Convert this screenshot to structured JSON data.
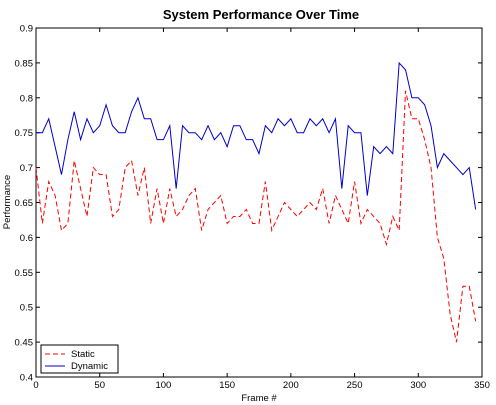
{
  "chart_data": {
    "type": "line",
    "title": "System Performance Over Time",
    "xlabel": "Frame #",
    "ylabel": "Performance",
    "xlim": [
      0,
      350
    ],
    "ylim": [
      0.4,
      0.9
    ],
    "xticks": [
      0,
      50,
      100,
      150,
      200,
      250,
      300,
      350
    ],
    "yticks": [
      0.4,
      0.45,
      0.5,
      0.55,
      0.6,
      0.65,
      0.7,
      0.75,
      0.8,
      0.85,
      0.9
    ],
    "grid": false,
    "legend_position": "bottom-left",
    "x": [
      0,
      5,
      10,
      15,
      20,
      25,
      30,
      35,
      40,
      45,
      50,
      55,
      60,
      65,
      70,
      75,
      80,
      85,
      90,
      95,
      100,
      105,
      110,
      115,
      120,
      125,
      130,
      135,
      140,
      145,
      150,
      155,
      160,
      165,
      170,
      175,
      180,
      185,
      190,
      195,
      200,
      205,
      210,
      215,
      220,
      225,
      230,
      235,
      240,
      245,
      250,
      255,
      260,
      265,
      270,
      275,
      280,
      285,
      290,
      295,
      300,
      305,
      310,
      315,
      320,
      325,
      330,
      335,
      340,
      345
    ],
    "series": [
      {
        "name": "Static",
        "color": "#ff0000",
        "style": "dashed",
        "values": [
          0.7,
          0.62,
          0.68,
          0.66,
          0.61,
          0.62,
          0.71,
          0.67,
          0.63,
          0.7,
          0.69,
          0.69,
          0.63,
          0.64,
          0.7,
          0.71,
          0.66,
          0.7,
          0.62,
          0.67,
          0.62,
          0.67,
          0.63,
          0.64,
          0.66,
          0.67,
          0.61,
          0.64,
          0.65,
          0.66,
          0.62,
          0.63,
          0.63,
          0.64,
          0.62,
          0.62,
          0.68,
          0.61,
          0.63,
          0.65,
          0.64,
          0.63,
          0.64,
          0.65,
          0.64,
          0.67,
          0.62,
          0.66,
          0.64,
          0.62,
          0.68,
          0.62,
          0.64,
          0.63,
          0.62,
          0.59,
          0.63,
          0.61,
          0.81,
          0.77,
          0.77,
          0.74,
          0.7,
          0.6,
          0.57,
          0.49,
          0.45,
          0.53,
          0.53,
          0.48
        ]
      },
      {
        "name": "Dynamic",
        "color": "#0000cc",
        "style": "solid",
        "values": [
          0.75,
          0.75,
          0.77,
          0.73,
          0.69,
          0.74,
          0.78,
          0.74,
          0.77,
          0.75,
          0.76,
          0.79,
          0.76,
          0.75,
          0.75,
          0.78,
          0.8,
          0.77,
          0.77,
          0.74,
          0.74,
          0.76,
          0.67,
          0.76,
          0.75,
          0.75,
          0.74,
          0.76,
          0.74,
          0.75,
          0.73,
          0.76,
          0.76,
          0.74,
          0.74,
          0.72,
          0.76,
          0.75,
          0.77,
          0.76,
          0.77,
          0.75,
          0.75,
          0.77,
          0.76,
          0.77,
          0.75,
          0.77,
          0.67,
          0.76,
          0.75,
          0.75,
          0.66,
          0.73,
          0.72,
          0.73,
          0.72,
          0.85,
          0.84,
          0.8,
          0.8,
          0.79,
          0.76,
          0.7,
          0.72,
          0.71,
          0.7,
          0.69,
          0.7,
          0.64
        ]
      }
    ]
  }
}
